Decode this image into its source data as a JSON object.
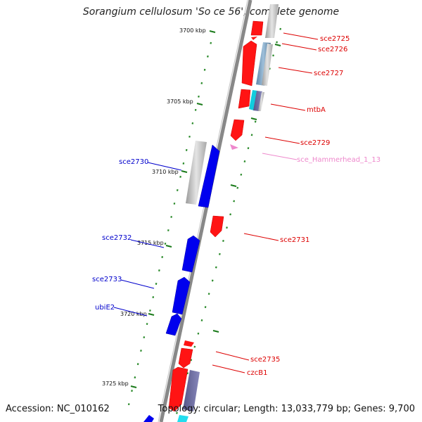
{
  "title": "Sorangium cellulosum 'So ce 56', complete genome",
  "footer": {
    "accession": "Accession: NC_010162",
    "topology": "Topology: circular; Length: 13,033,779 bp; Genes: 9,700"
  },
  "colors": {
    "forward_cds": "#ff0000",
    "reverse_cds": "#0000ff",
    "rna": "#ee88cc",
    "backbone": "#888888",
    "tick": "#1a7a1a"
  },
  "ticks": [
    "3700 kbp",
    "3705 kbp",
    "3710 kbp",
    "3715 kbp",
    "3720 kbp",
    "3725 kbp"
  ],
  "genes": [
    {
      "label": "sce2725"
    },
    {
      "label": "sce2726"
    },
    {
      "label": "sce2727"
    },
    {
      "label": "mtbA"
    },
    {
      "label": "sce2729"
    },
    {
      "label": "sce_Hammerhead_1_13"
    },
    {
      "label": "sce2730"
    },
    {
      "label": "sce2731"
    },
    {
      "label": "sce2732"
    },
    {
      "label": "sce2733"
    },
    {
      "label": "ubiE2"
    },
    {
      "label": "sce2735"
    },
    {
      "label": "czcB1"
    }
  ]
}
